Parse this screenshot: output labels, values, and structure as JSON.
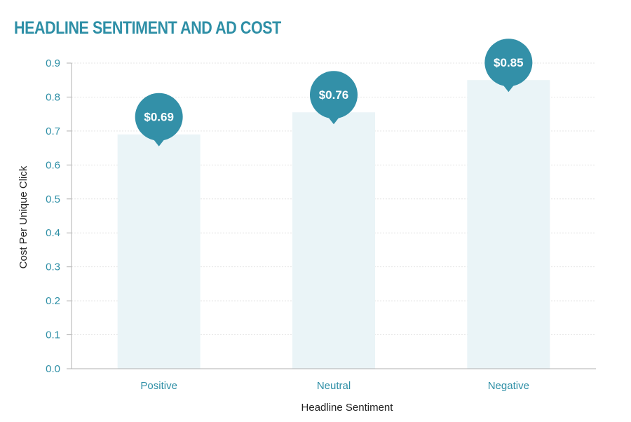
{
  "title": "HEADLINE SENTIMENT AND AD COST",
  "colors": {
    "title": "#2e8fa6",
    "tick": "#2e8fa6",
    "bar": "#eaf4f7",
    "pin": "#3390a8",
    "grid": "#e4e4e4",
    "axis": "#b0b0b0"
  },
  "chart_data": {
    "type": "bar",
    "title": "HEADLINE SENTIMENT AND AD COST",
    "xlabel": "Headline Sentiment",
    "ylabel": "Cost Per Unique Click",
    "categories": [
      "Positive",
      "Neutral",
      "Negative"
    ],
    "values": [
      0.69,
      0.755,
      0.85
    ],
    "data_labels": [
      "$0.69",
      "$0.76",
      "$0.85"
    ],
    "ylim": [
      0,
      0.9
    ],
    "yticks": [
      "0.0",
      "0.1",
      "0.2",
      "0.3",
      "0.4",
      "0.5",
      "0.6",
      "0.7",
      "0.8",
      "0.9"
    ],
    "grid": true,
    "legend": "none"
  }
}
